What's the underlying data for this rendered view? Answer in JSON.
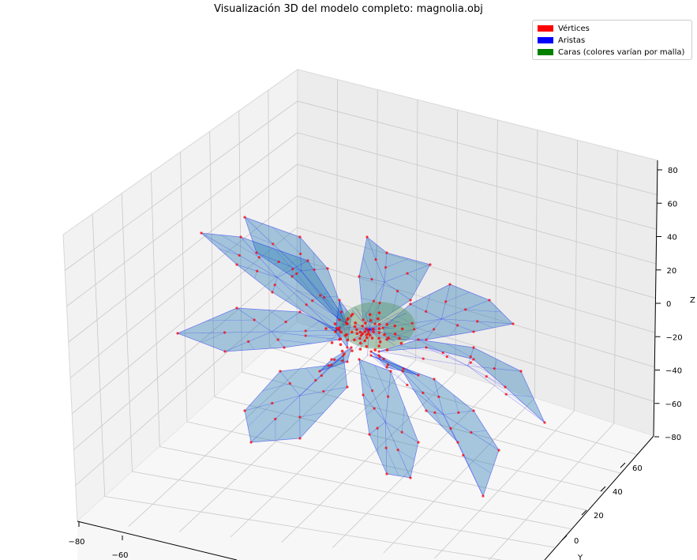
{
  "chart_data": {
    "type": "scatter",
    "title": "Visualización 3D del modelo completo: magnolia.obj",
    "axes": {
      "x": {
        "label": "",
        "ticks": [
          "−80",
          "−60"
        ],
        "range": [
          -80,
          80
        ]
      },
      "y": {
        "label": "Y",
        "ticks": [
          "0",
          "20",
          "40",
          "60"
        ],
        "range": [
          -10,
          70
        ]
      },
      "z": {
        "label": "Z",
        "ticks": [
          "−80",
          "−60",
          "−40",
          "−20",
          "0",
          "20",
          "40",
          "60",
          "80"
        ],
        "range": [
          -80,
          80
        ]
      }
    },
    "legend": {
      "placement": "top-right",
      "entries": [
        {
          "label": "Vértices",
          "color": "#ff0000"
        },
        {
          "label": "Aristas",
          "color": "#0000ff"
        },
        {
          "label": "Caras (colores varían por malla)",
          "color": "#008000"
        }
      ]
    },
    "grid": true,
    "series": [
      {
        "name": "Vértices",
        "color": "#ff0000"
      },
      {
        "name": "Aristas",
        "color": "#0000ff"
      },
      {
        "name": "Caras (colores varían por malla)",
        "color": "#1f77b4"
      }
    ]
  }
}
